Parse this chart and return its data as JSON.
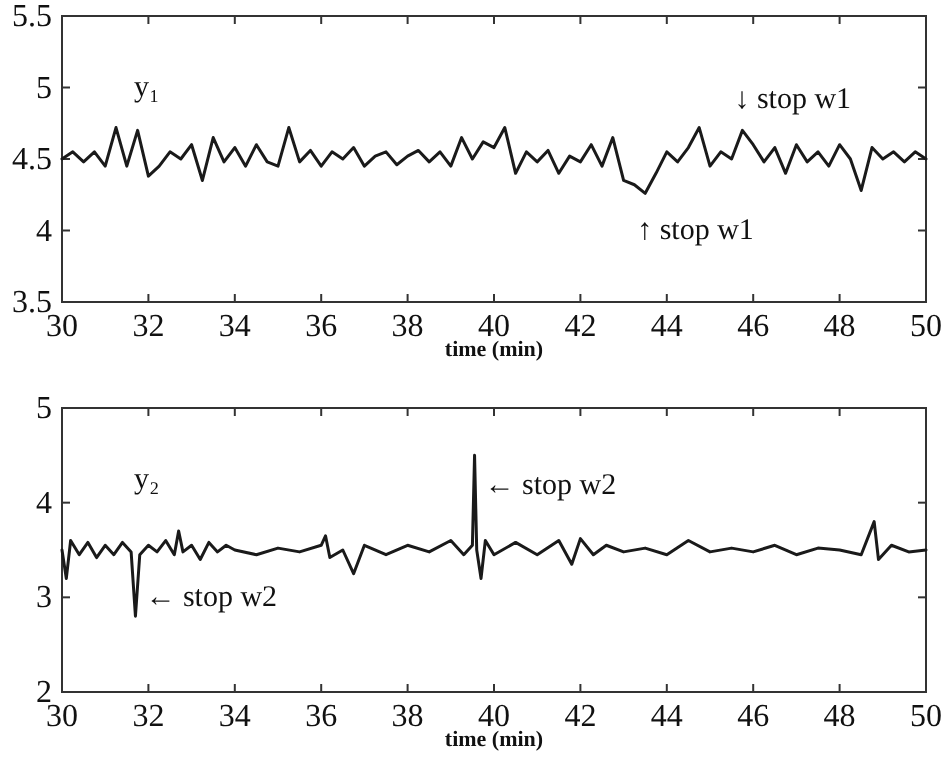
{
  "chart_data": [
    {
      "type": "line",
      "xlabel": "time (min)",
      "xlim": [
        30,
        50
      ],
      "xticks": [
        30,
        32,
        34,
        36,
        38,
        40,
        42,
        44,
        46,
        48,
        50
      ],
      "ylim": [
        3.5,
        5.5
      ],
      "yticks": [
        3.5,
        4,
        4.5,
        5,
        5.5
      ],
      "grid": false,
      "marker": "none",
      "line_style": "solid",
      "annotations": [
        "y₁",
        {
          "text": "↓ stop w1",
          "x": 45.75,
          "y": 4.7
        },
        {
          "text": "↑ stop w1",
          "x": 43.5,
          "y": 4.26
        }
      ],
      "series": [
        {
          "color": "#1a1a1a",
          "x": [
            30,
            30.25,
            30.5,
            30.75,
            31,
            31.25,
            31.5,
            31.75,
            32,
            32.25,
            32.5,
            32.75,
            33,
            33.25,
            33.5,
            33.75,
            34,
            34.25,
            34.5,
            34.75,
            35,
            35.25,
            35.5,
            35.75,
            36,
            36.25,
            36.5,
            36.75,
            37,
            37.25,
            37.5,
            37.75,
            38,
            38.25,
            38.5,
            38.75,
            39,
            39.25,
            39.5,
            39.75,
            40,
            40.25,
            40.5,
            40.75,
            41,
            41.25,
            41.5,
            41.75,
            42,
            42.25,
            42.5,
            42.75,
            43,
            43.25,
            43.5,
            43.75,
            44,
            44.25,
            44.5,
            44.75,
            45,
            45.25,
            45.5,
            45.75,
            46,
            46.25,
            46.5,
            46.75,
            47,
            47.25,
            47.5,
            47.75,
            48,
            48.25,
            48.5,
            48.75,
            49,
            49.25,
            49.5,
            49.75,
            50
          ],
          "values": [
            4.5,
            4.55,
            4.48,
            4.55,
            4.45,
            4.72,
            4.45,
            4.7,
            4.38,
            4.45,
            4.55,
            4.5,
            4.6,
            4.35,
            4.65,
            4.48,
            4.58,
            4.45,
            4.6,
            4.48,
            4.45,
            4.72,
            4.48,
            4.56,
            4.45,
            4.55,
            4.5,
            4.58,
            4.45,
            4.52,
            4.55,
            4.46,
            4.52,
            4.56,
            4.48,
            4.55,
            4.45,
            4.65,
            4.5,
            4.62,
            4.58,
            4.72,
            4.4,
            4.55,
            4.48,
            4.56,
            4.4,
            4.52,
            4.48,
            4.6,
            4.45,
            4.65,
            4.35,
            4.32,
            4.26,
            4.4,
            4.55,
            4.48,
            4.58,
            4.72,
            4.45,
            4.55,
            4.5,
            4.7,
            4.6,
            4.48,
            4.58,
            4.4,
            4.6,
            4.48,
            4.55,
            4.45,
            4.6,
            4.5,
            4.28,
            4.58,
            4.5,
            4.55,
            4.48,
            4.55,
            4.5
          ]
        }
      ]
    },
    {
      "type": "line",
      "xlabel": "time (min)",
      "xlim": [
        30,
        50
      ],
      "xticks": [
        30,
        32,
        34,
        36,
        38,
        40,
        42,
        44,
        46,
        48,
        50
      ],
      "ylim": [
        2,
        5
      ],
      "yticks": [
        2,
        3,
        4,
        5
      ],
      "grid": false,
      "marker": "none",
      "line_style": "solid",
      "annotations": [
        "y₂",
        {
          "text": "← stop w2",
          "x": 39.55,
          "y": 4.5
        },
        {
          "text": "← stop w2",
          "x": 31.7,
          "y": 2.8
        }
      ],
      "series": [
        {
          "color": "#1a1a1a",
          "x": [
            30,
            30.1,
            30.2,
            30.4,
            30.6,
            30.8,
            31,
            31.2,
            31.4,
            31.6,
            31.7,
            31.8,
            32,
            32.2,
            32.4,
            32.6,
            32.7,
            32.8,
            33,
            33.2,
            33.4,
            33.6,
            33.8,
            34,
            34.5,
            35,
            35.5,
            36,
            36.1,
            36.2,
            36.5,
            36.75,
            37,
            37.5,
            38,
            38.5,
            39,
            39.3,
            39.5,
            39.55,
            39.6,
            39.7,
            39.8,
            40,
            40.5,
            41,
            41.5,
            41.8,
            42,
            42.3,
            42.6,
            43,
            43.5,
            44,
            44.5,
            45,
            45.5,
            46,
            46.5,
            47,
            47.5,
            48,
            48.5,
            48.8,
            48.9,
            49.2,
            49.6,
            50
          ],
          "values": [
            3.5,
            3.2,
            3.6,
            3.45,
            3.58,
            3.42,
            3.55,
            3.45,
            3.58,
            3.48,
            2.8,
            3.45,
            3.55,
            3.48,
            3.6,
            3.45,
            3.7,
            3.48,
            3.55,
            3.4,
            3.58,
            3.48,
            3.55,
            3.5,
            3.45,
            3.52,
            3.48,
            3.55,
            3.65,
            3.42,
            3.5,
            3.25,
            3.55,
            3.45,
            3.55,
            3.48,
            3.6,
            3.45,
            3.55,
            4.5,
            3.5,
            3.2,
            3.6,
            3.45,
            3.58,
            3.45,
            3.6,
            3.35,
            3.62,
            3.45,
            3.55,
            3.48,
            3.52,
            3.45,
            3.6,
            3.48,
            3.52,
            3.48,
            3.55,
            3.45,
            3.52,
            3.5,
            3.45,
            3.8,
            3.4,
            3.55,
            3.48,
            3.5
          ]
        }
      ]
    }
  ]
}
